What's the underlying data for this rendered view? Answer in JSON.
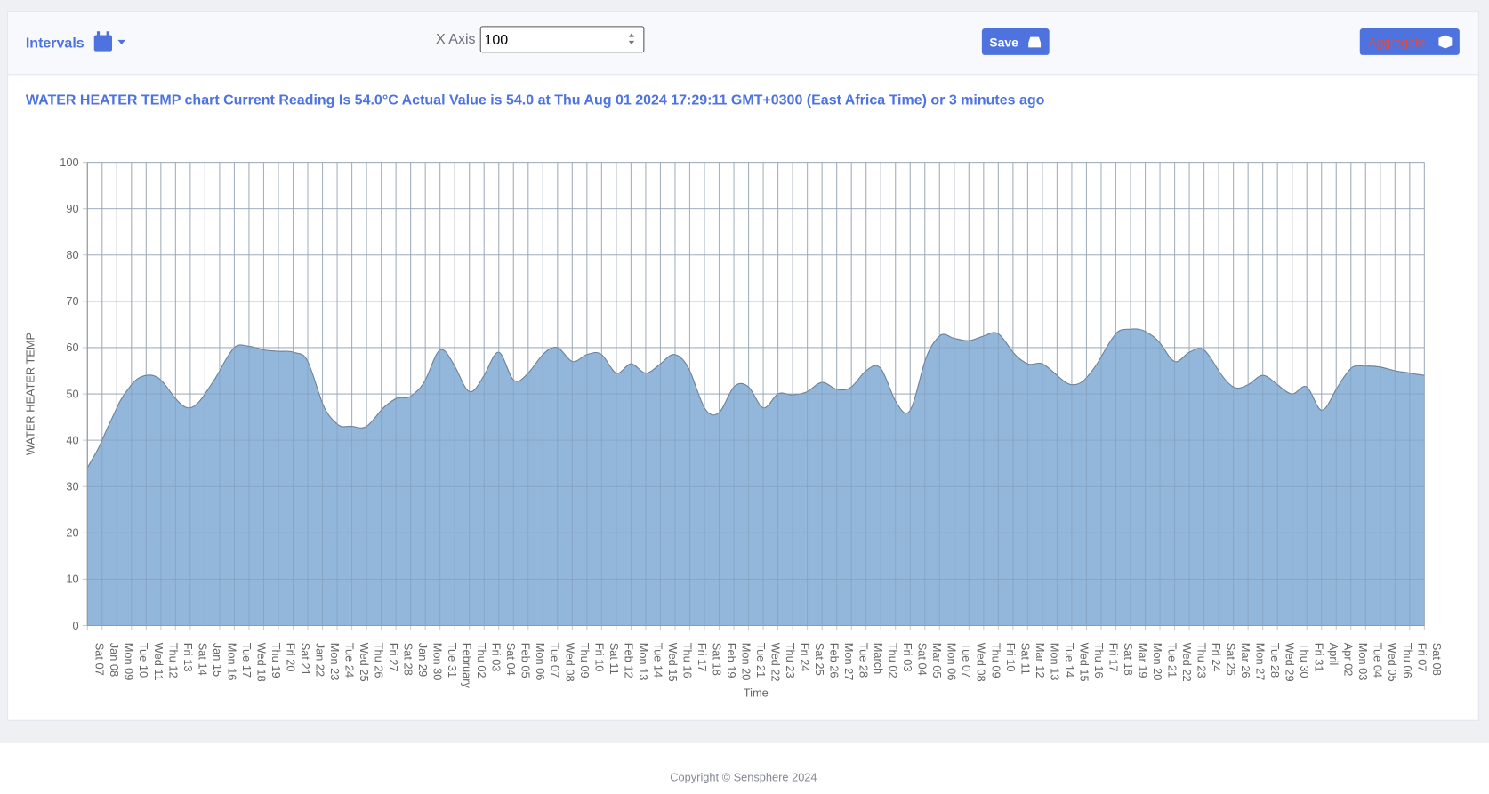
{
  "header": {
    "intervals": "Intervals",
    "x_axis_label": "X Axis",
    "x_axis_value": "100",
    "save": "Save",
    "aggregate": "Aggregate"
  },
  "reading": "WATER HEATER TEMP chart Current Reading Is 54.0°C Actual Value is 54.0 at Thu Aug 01 2024 17:29:11 GMT+0300 (East Africa Time) or 3 minutes ago",
  "chart_data": {
    "type": "area",
    "ylabel": "WATER HEATER TEMP",
    "xlabel": "Time",
    "color": "#8db3d9",
    "line_color": "#6b7f95",
    "categories": [
      "Sat 07",
      "Jan 08",
      "Mon 09",
      "Tue 10",
      "Wed 11",
      "Thu 12",
      "Fri 13",
      "Sat 14",
      "Jan 15",
      "Mon 16",
      "Tue 17",
      "Wed 18",
      "Thu 19",
      "Fri 20",
      "Sat 21",
      "Jan 22",
      "Mon 23",
      "Tue 24",
      "Wed 25",
      "Thu 26",
      "Fri 27",
      "Sat 28",
      "Jan 29",
      "Mon 30",
      "Tue 31",
      "February",
      "Thu 02",
      "Fri 03",
      "Sat 04",
      "Feb 05",
      "Mon 06",
      "Tue 07",
      "Wed 08",
      "Thu 09",
      "Fri 10",
      "Sat 11",
      "Feb 12",
      "Mon 13",
      "Tue 14",
      "Wed 15",
      "Thu 16",
      "Fri 17",
      "Sat 18",
      "Feb 19",
      "Mon 20",
      "Tue 21",
      "Wed 22",
      "Thu 23",
      "Fri 24",
      "Sat 25",
      "Feb 26",
      "Mon 27",
      "Tue 28",
      "March",
      "Thu 02",
      "Fri 03",
      "Sat 04",
      "Mar 05",
      "Mon 06",
      "Tue 07",
      "Wed 08",
      "Thu 09",
      "Fri 10",
      "Sat 11",
      "Mar 12",
      "Mon 13",
      "Tue 14",
      "Wed 15",
      "Thu 16",
      "Fri 17",
      "Sat 18",
      "Mar 19",
      "Mon 20",
      "Tue 21",
      "Wed 22",
      "Thu 23",
      "Fri 24",
      "Sat 25",
      "Mar 26",
      "Mon 27",
      "Tue 28",
      "Wed 29",
      "Thu 30",
      "Fri 31",
      "April",
      "Apr 02",
      "Mon 03",
      "Tue 04",
      "Wed 05",
      "Thu 06",
      "Fri 07",
      "Sat 08"
    ],
    "values": [
      34,
      40,
      47,
      52,
      54,
      53,
      49,
      47,
      50,
      55,
      60,
      60.3,
      59.5,
      59.2,
      59,
      57,
      48,
      43.5,
      43,
      43,
      46.5,
      49,
      49.5,
      53,
      59.5,
      56,
      50.5,
      54,
      59,
      53,
      54.5,
      58.5,
      60,
      57,
      58.5,
      58.5,
      54.5,
      56.5,
      54.5,
      56.5,
      58.5,
      55,
      47,
      46,
      51.5,
      51.5,
      47,
      50,
      49.8,
      50.5,
      52.5,
      51,
      51.5,
      55,
      55.5,
      48.5,
      46.5,
      57,
      62.5,
      62,
      61.5,
      62.5,
      63,
      59,
      56.5,
      56.5,
      54,
      52,
      53.5,
      58,
      63,
      64,
      63.5,
      61,
      57,
      59,
      59.5,
      55,
      51.5,
      52,
      54,
      52,
      50,
      51.5,
      46.5,
      51,
      55.5,
      56,
      55.8,
      55,
      54.5,
      54
    ],
    "ylim": [
      0,
      100
    ],
    "yticks": [
      0,
      10,
      20,
      30,
      40,
      50,
      60,
      70,
      80,
      90,
      100
    ],
    "grid": true
  },
  "footer": "Copyright © Sensphere 2024"
}
